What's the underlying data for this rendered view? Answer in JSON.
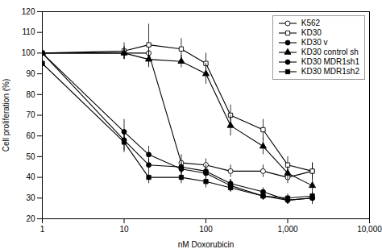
{
  "chart_data": {
    "type": "line",
    "xlabel": "nM Doxorubicin",
    "ylabel": "Cell proliferation (%)",
    "log": "x",
    "grid": false,
    "legend": "upper right",
    "xlim": [
      1,
      10000
    ],
    "xticks": [
      1,
      10,
      100,
      {
        "value": 1000,
        "label": "1,000"
      },
      {
        "value": 10000,
        "label": "10,000"
      }
    ],
    "ylim": [
      20,
      120
    ],
    "yticks": [
      20,
      30,
      40,
      50,
      60,
      70,
      80,
      90,
      100,
      110,
      120
    ],
    "x": [
      1,
      10,
      20,
      50,
      100,
      200,
      500,
      1000,
      2000
    ],
    "series": [
      {
        "name": "K562",
        "color": "#000000",
        "marker": "circle-open",
        "values": [
          100,
          100,
          100,
          47,
          46,
          43,
          43,
          40,
          43
        ],
        "yerr": [
          2,
          3,
          4,
          4,
          3,
          3,
          3,
          3,
          4
        ]
      },
      {
        "name": "KD30",
        "color": "#000000",
        "marker": "square-open",
        "values": [
          100,
          101,
          104,
          102,
          95,
          70,
          63,
          46,
          43
        ],
        "yerr": [
          2,
          4,
          10,
          5,
          5,
          5,
          5,
          4,
          4
        ]
      },
      {
        "name": "KD30 v",
        "color": "#000000",
        "marker": "circle",
        "values": [
          100,
          58,
          46,
          45,
          43,
          37,
          33,
          29,
          30
        ],
        "yerr": [
          2,
          5,
          3,
          3,
          3,
          2,
          2,
          2,
          2
        ]
      },
      {
        "name": "KD30 control sh",
        "color": "#000000",
        "marker": "triangle",
        "values": [
          100,
          100,
          97,
          96,
          90,
          65,
          55,
          42,
          36
        ],
        "yerr": [
          2,
          3,
          4,
          3,
          5,
          5,
          4,
          3,
          3
        ]
      },
      {
        "name": "KD30 MDR1sh1",
        "color": "#000000",
        "marker": "circle",
        "values": [
          100,
          62,
          51,
          44,
          42,
          36,
          31,
          29,
          30
        ],
        "yerr": [
          2,
          6,
          4,
          3,
          3,
          3,
          2,
          2,
          3
        ]
      },
      {
        "name": "KD30 MDR1sh2",
        "color": "#000000",
        "marker": "square",
        "values": [
          95,
          57,
          40,
          40,
          38,
          35,
          31,
          30,
          31
        ],
        "yerr": [
          2,
          5,
          3,
          3,
          3,
          2,
          2,
          2,
          2
        ]
      }
    ]
  }
}
